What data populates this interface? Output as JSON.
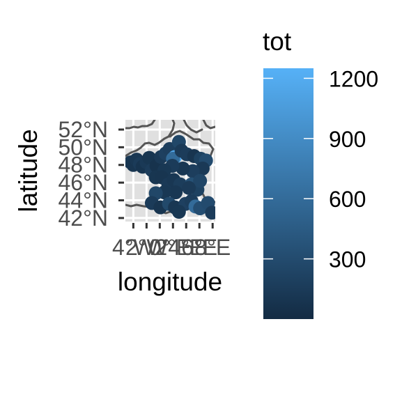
{
  "chart_data": {
    "type": "scatter",
    "title": "",
    "xlabel": "longitude",
    "ylabel": "latitude",
    "xlim": [
      -5.2,
      8.4
    ],
    "ylim": [
      41.6,
      53.1
    ],
    "x_ticks": [
      {
        "value": -4,
        "label": "4°W"
      },
      {
        "value": -2,
        "label": "2°W"
      },
      {
        "value": 0,
        "label": "0°"
      },
      {
        "value": 2,
        "label": "2°E"
      },
      {
        "value": 4,
        "label": "4°E"
      },
      {
        "value": 6,
        "label": "6°E"
      },
      {
        "value": 8,
        "label": "8°E"
      }
    ],
    "y_ticks": [
      {
        "value": 42,
        "label": "42°N"
      },
      {
        "value": 44,
        "label": "44°N"
      },
      {
        "value": 46,
        "label": "46°N"
      },
      {
        "value": 48,
        "label": "48°N"
      },
      {
        "value": 50,
        "label": "50°N"
      },
      {
        "value": 52,
        "label": "52°N"
      }
    ],
    "grid": true,
    "legend": {
      "title": "tot",
      "position": "right",
      "type": "colorbar",
      "range": [
        0,
        1250
      ],
      "ticks": [
        300,
        600,
        900,
        1200
      ],
      "low_color": "#132b43",
      "high_color": "#56b1f7"
    },
    "points": [
      {
        "lon": -4.4,
        "lat": 48.3,
        "tot": 120
      },
      {
        "lon": -4.0,
        "lat": 48.0,
        "tot": 90
      },
      {
        "lon": -3.5,
        "lat": 48.6,
        "tot": 110
      },
      {
        "lon": -3.0,
        "lat": 48.1,
        "tot": 150
      },
      {
        "lon": -2.6,
        "lat": 47.8,
        "tot": 80
      },
      {
        "lon": -2.0,
        "lat": 48.3,
        "tot": 130
      },
      {
        "lon": -1.6,
        "lat": 48.8,
        "tot": 100
      },
      {
        "lon": -1.2,
        "lat": 47.4,
        "tot": 160
      },
      {
        "lon": -0.5,
        "lat": 47.9,
        "tot": 70
      },
      {
        "lon": 0.2,
        "lat": 48.9,
        "tot": 140
      },
      {
        "lon": 0.9,
        "lat": 49.3,
        "tot": 200
      },
      {
        "lon": 1.5,
        "lat": 49.8,
        "tot": 180
      },
      {
        "lon": 2.3,
        "lat": 48.9,
        "tot": 1150
      },
      {
        "lon": 2.0,
        "lat": 48.7,
        "tot": 600
      },
      {
        "lon": 2.9,
        "lat": 50.6,
        "tot": 260
      },
      {
        "lon": 3.3,
        "lat": 49.6,
        "tot": 140
      },
      {
        "lon": 4.1,
        "lat": 49.2,
        "tot": 160
      },
      {
        "lon": 5.2,
        "lat": 49.0,
        "tot": 90
      },
      {
        "lon": 6.2,
        "lat": 48.7,
        "tot": 210
      },
      {
        "lon": 7.0,
        "lat": 48.5,
        "tot": 300
      },
      {
        "lon": 6.5,
        "lat": 47.6,
        "tot": 130
      },
      {
        "lon": 5.0,
        "lat": 47.3,
        "tot": 180
      },
      {
        "lon": 3.5,
        "lat": 47.6,
        "tot": 110
      },
      {
        "lon": 1.9,
        "lat": 47.9,
        "tot": 150
      },
      {
        "lon": 0.7,
        "lat": 47.4,
        "tot": 120
      },
      {
        "lon": -0.6,
        "lat": 46.6,
        "tot": 100
      },
      {
        "lon": 0.3,
        "lat": 46.6,
        "tot": 90
      },
      {
        "lon": 1.3,
        "lat": 45.8,
        "tot": 130
      },
      {
        "lon": 2.1,
        "lat": 46.3,
        "tot": 110
      },
      {
        "lon": 3.1,
        "lat": 45.8,
        "tot": 170
      },
      {
        "lon": 4.8,
        "lat": 45.8,
        "tot": 350
      },
      {
        "lon": 5.7,
        "lat": 45.2,
        "tot": 210
      },
      {
        "lon": 6.1,
        "lat": 46.2,
        "tot": 240
      },
      {
        "lon": 4.4,
        "lat": 45.4,
        "tot": 140
      },
      {
        "lon": 2.4,
        "lat": 44.9,
        "tot": 110
      },
      {
        "lon": 0.7,
        "lat": 44.9,
        "tot": 120
      },
      {
        "lon": -0.6,
        "lat": 44.8,
        "tot": 260
      },
      {
        "lon": -1.2,
        "lat": 43.7,
        "tot": 150
      },
      {
        "lon": 0.1,
        "lat": 43.2,
        "tot": 90
      },
      {
        "lon": 1.4,
        "lat": 43.6,
        "tot": 280
      },
      {
        "lon": 2.3,
        "lat": 43.2,
        "tot": 110
      },
      {
        "lon": 3.9,
        "lat": 43.6,
        "tot": 200
      },
      {
        "lon": 4.8,
        "lat": 43.9,
        "tot": 170
      },
      {
        "lon": 5.4,
        "lat": 43.3,
        "tot": 600
      },
      {
        "lon": 6.1,
        "lat": 43.1,
        "tot": 320
      },
      {
        "lon": 7.3,
        "lat": 43.7,
        "tot": 300
      },
      {
        "lon": 7.9,
        "lat": 42.6,
        "tot": 160
      },
      {
        "lon": 2.9,
        "lat": 42.7,
        "tot": 120
      }
    ]
  }
}
